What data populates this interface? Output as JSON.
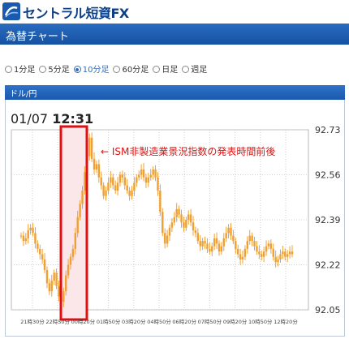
{
  "header": {
    "logo_text": "セントラル短資FX"
  },
  "title_bar": {
    "title": "為替チャート"
  },
  "intervals": [
    {
      "label": "1分足",
      "selected": false
    },
    {
      "label": "5分足",
      "selected": false
    },
    {
      "label": "10分足",
      "selected": true
    },
    {
      "label": "60分足",
      "selected": false
    },
    {
      "label": "日足",
      "selected": false
    },
    {
      "label": "週足",
      "selected": false
    }
  ],
  "panel": {
    "title": "ドル/円"
  },
  "date_time": {
    "date": "01/07",
    "time": "12:31"
  },
  "annotation": {
    "text": "← ISM非製造業景況指数の発表時間前後"
  },
  "colors": {
    "candle": "#f0a032",
    "highlight_border": "#e01010",
    "highlight_fill": "#fbe6ea",
    "accent": "#1a5aad"
  },
  "chart_data": {
    "type": "candlestick",
    "y_ticks": [
      "92.73",
      "92.56",
      "92.39",
      "92.22",
      "92.05"
    ],
    "ylim": [
      92.05,
      92.73
    ],
    "x_ticks": [
      "21時30分",
      "22時50分",
      "00時20分",
      "01時50分",
      "03時20分",
      "04時50分",
      "06時20分",
      "07時50分",
      "09時20分",
      "10時50分",
      "12時20分"
    ],
    "close_series": [
      92.33,
      92.31,
      92.32,
      92.35,
      92.36,
      92.34,
      92.3,
      92.28,
      92.26,
      92.24,
      92.2,
      92.15,
      92.12,
      92.16,
      92.19,
      92.14,
      92.1,
      92.08,
      92.12,
      92.18,
      92.22,
      92.25,
      92.28,
      92.34,
      92.4,
      92.45,
      92.5,
      92.57,
      92.63,
      92.7,
      92.62,
      92.58,
      92.6,
      92.55,
      92.52,
      92.48,
      92.5,
      92.53,
      92.55,
      92.52,
      92.5,
      92.53,
      92.56,
      92.55,
      92.52,
      92.5,
      92.48,
      92.5,
      92.53,
      92.55,
      92.56,
      92.58,
      92.55,
      92.53,
      92.55,
      92.56,
      92.58,
      92.55,
      92.5,
      92.42,
      92.34,
      92.3,
      92.33,
      92.36,
      92.38,
      92.4,
      92.43,
      92.41,
      92.38,
      92.36,
      92.39,
      92.41,
      92.38,
      92.35,
      92.34,
      92.31,
      92.29,
      92.31,
      92.3,
      92.28,
      92.27,
      92.29,
      92.32,
      92.3,
      92.27,
      92.29,
      92.32,
      92.34,
      92.36,
      92.33,
      92.31,
      92.28,
      92.26,
      92.24,
      92.25,
      92.28,
      92.31,
      92.33,
      92.31,
      92.29,
      92.27,
      92.26,
      92.25,
      92.27,
      92.29,
      92.3,
      92.28,
      92.25,
      92.23,
      92.24,
      92.26,
      92.27,
      92.25,
      92.26,
      92.27,
      92.26
    ]
  }
}
